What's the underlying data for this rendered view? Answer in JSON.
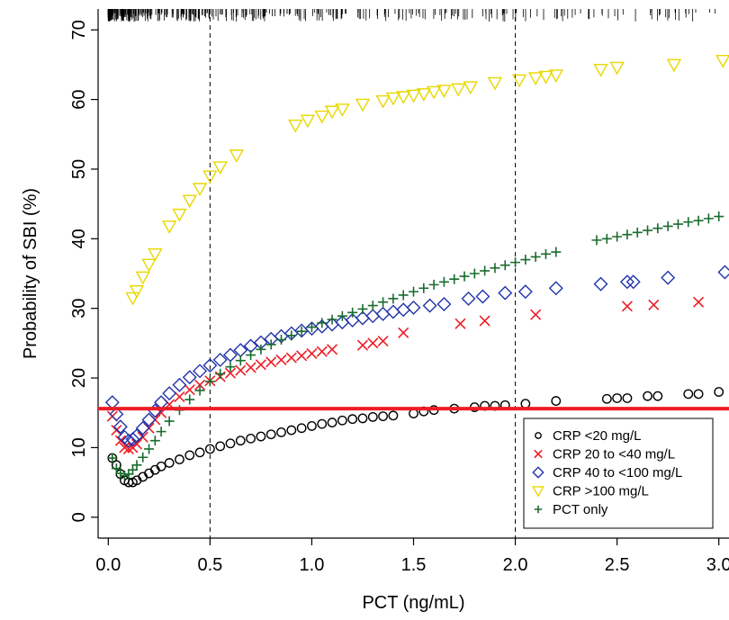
{
  "chart_data": {
    "type": "scatter",
    "xlabel": "PCT (ng/mL)",
    "ylabel": "Probability of SBI (%)",
    "xlim": [
      -0.05,
      3.05
    ],
    "ylim": [
      -3,
      73
    ],
    "xticks": [
      0.0,
      0.5,
      1.0,
      1.5,
      2.0,
      2.5,
      3.0
    ],
    "xtick_labels": [
      "0.0",
      "0.5",
      "1.0",
      "1.5",
      "2.0",
      "2.5",
      "3.0"
    ],
    "yticks": [
      0,
      10,
      20,
      30,
      40,
      50,
      60,
      70
    ],
    "ytick_labels": [
      "0",
      "10",
      "20",
      "30",
      "40",
      "50",
      "60",
      "70"
    ],
    "vlines": [
      0.5,
      2.0
    ],
    "hline": {
      "y": 15.6,
      "color": "#ee1c25"
    },
    "rug": true,
    "grid": false,
    "legend_position": "bottom-right",
    "series": [
      {
        "name": "CRP <20 mg/L",
        "marker": "circle",
        "color": "#000000",
        "x": [
          0.02,
          0.04,
          0.06,
          0.08,
          0.1,
          0.12,
          0.14,
          0.17,
          0.2,
          0.23,
          0.26,
          0.3,
          0.35,
          0.4,
          0.45,
          0.5,
          0.55,
          0.6,
          0.65,
          0.7,
          0.75,
          0.8,
          0.85,
          0.9,
          0.95,
          1.0,
          1.05,
          1.1,
          1.15,
          1.2,
          1.25,
          1.3,
          1.35,
          1.4,
          1.5,
          1.55,
          1.6,
          1.7,
          1.8,
          1.85,
          1.9,
          1.95,
          2.05,
          2.2,
          2.45,
          2.5,
          2.55,
          2.65,
          2.7,
          2.85,
          2.9,
          3.0
        ],
        "y": [
          8.5,
          7.5,
          6.2,
          5.3,
          5.0,
          5.0,
          5.3,
          5.8,
          6.3,
          6.8,
          7.3,
          7.8,
          8.3,
          8.9,
          9.3,
          9.8,
          10.2,
          10.6,
          11.0,
          11.3,
          11.6,
          11.9,
          12.2,
          12.5,
          12.8,
          13.1,
          13.4,
          13.6,
          13.9,
          14.1,
          14.2,
          14.4,
          14.5,
          14.6,
          14.9,
          15.2,
          15.4,
          15.6,
          15.8,
          16.0,
          16.0,
          16.1,
          16.3,
          16.7,
          17.0,
          17.1,
          17.1,
          17.4,
          17.4,
          17.7,
          17.7,
          18.0
        ]
      },
      {
        "name": "CRP 20 to <40 mg/L",
        "marker": "x",
        "color": "#ee1c25",
        "x": [
          0.02,
          0.04,
          0.06,
          0.08,
          0.1,
          0.12,
          0.14,
          0.17,
          0.2,
          0.23,
          0.26,
          0.3,
          0.35,
          0.4,
          0.45,
          0.5,
          0.55,
          0.6,
          0.65,
          0.7,
          0.75,
          0.8,
          0.85,
          0.9,
          0.95,
          1.0,
          1.05,
          1.1,
          1.25,
          1.3,
          1.35,
          1.45,
          1.73,
          1.85,
          2.1,
          2.55,
          2.68,
          2.9
        ],
        "y": [
          14.5,
          12.5,
          11.0,
          10.0,
          9.8,
          10.0,
          10.5,
          11.5,
          12.8,
          14.0,
          15.0,
          16.2,
          17.3,
          18.3,
          19.0,
          19.6,
          20.2,
          20.7,
          21.1,
          21.5,
          21.9,
          22.3,
          22.6,
          22.9,
          23.2,
          23.5,
          23.8,
          24.1,
          24.7,
          25.0,
          25.3,
          26.5,
          27.8,
          28.2,
          29.1,
          30.3,
          30.5,
          30.9
        ]
      },
      {
        "name": "CRP 40 to <100 mg/L",
        "marker": "diamond",
        "color": "#2233aa",
        "x": [
          0.02,
          0.04,
          0.06,
          0.08,
          0.1,
          0.12,
          0.14,
          0.17,
          0.2,
          0.23,
          0.26,
          0.3,
          0.35,
          0.4,
          0.45,
          0.5,
          0.55,
          0.6,
          0.65,
          0.7,
          0.75,
          0.8,
          0.85,
          0.9,
          0.95,
          1.0,
          1.05,
          1.1,
          1.15,
          1.2,
          1.25,
          1.3,
          1.35,
          1.4,
          1.45,
          1.5,
          1.58,
          1.65,
          1.77,
          1.84,
          1.95,
          2.05,
          2.2,
          2.42,
          2.55,
          2.58,
          2.75,
          3.03
        ],
        "y": [
          16.5,
          14.8,
          13.0,
          11.5,
          11.0,
          11.2,
          11.7,
          12.8,
          14.0,
          15.3,
          16.5,
          17.8,
          19.0,
          20.1,
          21.0,
          21.8,
          22.6,
          23.3,
          24.0,
          24.6,
          25.1,
          25.6,
          26.0,
          26.4,
          26.8,
          27.1,
          27.4,
          27.7,
          28.0,
          28.3,
          28.6,
          28.9,
          29.2,
          29.5,
          29.8,
          30.1,
          30.4,
          30.6,
          31.4,
          31.7,
          32.2,
          32.4,
          32.9,
          33.5,
          33.8,
          33.8,
          34.4,
          35.2
        ]
      },
      {
        "name": "CRP >100 mg/L",
        "marker": "triangle-down",
        "color": "#e8d800",
        "x": [
          0.12,
          0.14,
          0.17,
          0.2,
          0.23,
          0.3,
          0.35,
          0.4,
          0.45,
          0.5,
          0.55,
          0.63,
          0.92,
          0.98,
          1.05,
          1.1,
          1.15,
          1.25,
          1.35,
          1.4,
          1.45,
          1.5,
          1.55,
          1.6,
          1.65,
          1.72,
          1.78,
          1.9,
          2.02,
          2.1,
          2.15,
          2.2,
          2.42,
          2.5,
          2.78,
          3.02
        ],
        "y": [
          31.5,
          32.5,
          34.5,
          36.3,
          37.8,
          41.8,
          43.5,
          45.5,
          47.2,
          49.0,
          50.3,
          52.0,
          56.3,
          57.0,
          57.6,
          58.3,
          58.6,
          59.3,
          59.8,
          60.2,
          60.4,
          60.6,
          60.8,
          61.1,
          61.3,
          61.5,
          61.8,
          62.4,
          62.8,
          63.1,
          63.3,
          63.5,
          64.3,
          64.6,
          65.0,
          65.6
        ]
      },
      {
        "name": "PCT only",
        "marker": "plus",
        "color": "#1a6b2e",
        "x": [
          0.02,
          0.04,
          0.06,
          0.08,
          0.1,
          0.12,
          0.14,
          0.17,
          0.2,
          0.23,
          0.26,
          0.3,
          0.35,
          0.4,
          0.45,
          0.5,
          0.55,
          0.6,
          0.65,
          0.7,
          0.75,
          0.8,
          0.85,
          0.9,
          0.95,
          1.0,
          1.05,
          1.1,
          1.15,
          1.2,
          1.25,
          1.3,
          1.35,
          1.4,
          1.45,
          1.5,
          1.55,
          1.6,
          1.65,
          1.7,
          1.75,
          1.8,
          1.85,
          1.9,
          1.95,
          2.0,
          2.05,
          2.1,
          2.15,
          2.2,
          2.4,
          2.45,
          2.5,
          2.55,
          2.6,
          2.65,
          2.7,
          2.75,
          2.8,
          2.85,
          2.9,
          2.95,
          3.0
        ],
        "y": [
          8.5,
          7.0,
          6.3,
          6.0,
          6.2,
          6.8,
          7.5,
          8.6,
          9.8,
          11.0,
          12.3,
          13.8,
          15.4,
          16.9,
          18.2,
          19.5,
          20.6,
          21.6,
          22.5,
          23.3,
          24.1,
          24.8,
          25.5,
          26.1,
          26.7,
          27.3,
          27.9,
          28.4,
          28.9,
          29.4,
          29.9,
          30.4,
          30.9,
          31.4,
          31.9,
          32.4,
          32.9,
          33.4,
          33.8,
          34.2,
          34.6,
          35.0,
          35.4,
          35.8,
          36.2,
          36.6,
          37.0,
          37.4,
          37.8,
          38.1,
          39.8,
          40.0,
          40.3,
          40.6,
          40.9,
          41.2,
          41.5,
          41.8,
          42.1,
          42.4,
          42.6,
          42.9,
          43.2
        ]
      }
    ]
  }
}
